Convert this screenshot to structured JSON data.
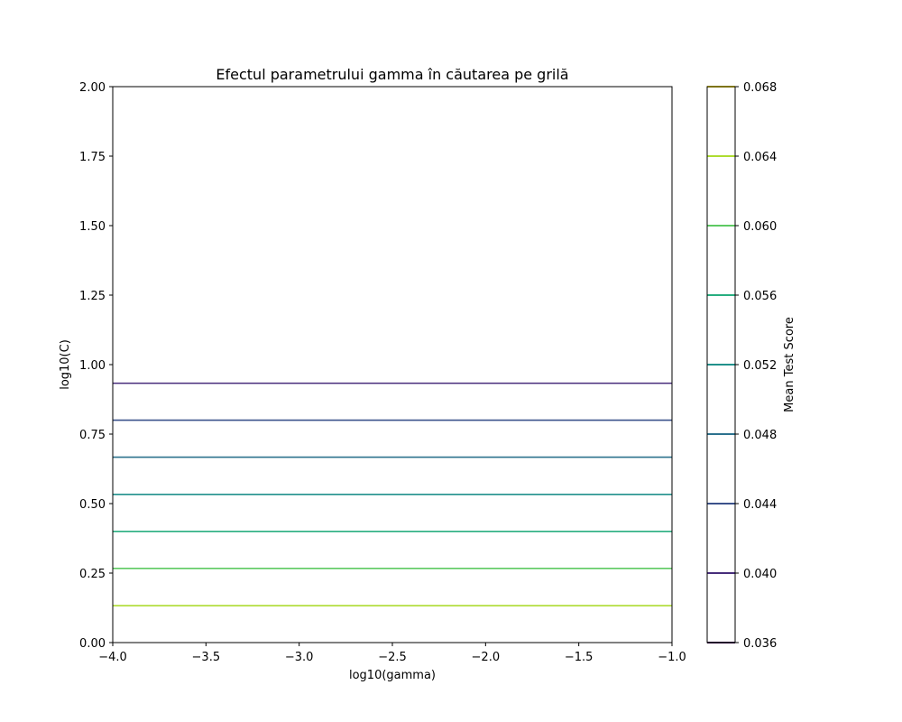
{
  "chart_data": {
    "type": "contour",
    "title": "Efectul parametrului gamma în căutarea pe grilă",
    "xlabel": "log10(gamma)",
    "ylabel": "log10(C)",
    "xlim": [
      -4.0,
      -1.0
    ],
    "ylim": [
      0.0,
      2.0
    ],
    "x_ticks": [
      "−4.0",
      "−3.5",
      "−3.0",
      "−2.5",
      "−2.0",
      "−1.5",
      "−1.0"
    ],
    "y_ticks": [
      "0.00",
      "0.25",
      "0.50",
      "0.75",
      "1.00",
      "1.25",
      "1.50",
      "1.75",
      "2.00"
    ],
    "grid": false,
    "levels": [
      {
        "value": 0.04,
        "y": 0.933,
        "color": "#472d7b"
      },
      {
        "value": 0.044,
        "y": 0.8,
        "color": "#3b528b"
      },
      {
        "value": 0.048,
        "y": 0.667,
        "color": "#2c728e"
      },
      {
        "value": 0.052,
        "y": 0.533,
        "color": "#21918c"
      },
      {
        "value": 0.056,
        "y": 0.4,
        "color": "#28ae80"
      },
      {
        "value": 0.06,
        "y": 0.267,
        "color": "#5ec962"
      },
      {
        "value": 0.064,
        "y": 0.133,
        "color": "#addc30"
      }
    ],
    "colorbar": {
      "label": "Mean Test Score",
      "range": [
        0.036,
        0.068
      ],
      "ticks": [
        {
          "value": 0.036,
          "label": "0.036",
          "color": "#440154"
        },
        {
          "value": 0.04,
          "label": "0.040",
          "color": "#472d7b"
        },
        {
          "value": 0.044,
          "label": "0.044",
          "color": "#3b528b"
        },
        {
          "value": 0.048,
          "label": "0.048",
          "color": "#2c728e"
        },
        {
          "value": 0.052,
          "label": "0.052",
          "color": "#21918c"
        },
        {
          "value": 0.056,
          "label": "0.056",
          "color": "#28ae80"
        },
        {
          "value": 0.06,
          "label": "0.060",
          "color": "#5ec962"
        },
        {
          "value": 0.064,
          "label": "0.064",
          "color": "#addc30"
        },
        {
          "value": 0.068,
          "label": "0.068",
          "color": "#fde725"
        }
      ]
    }
  }
}
